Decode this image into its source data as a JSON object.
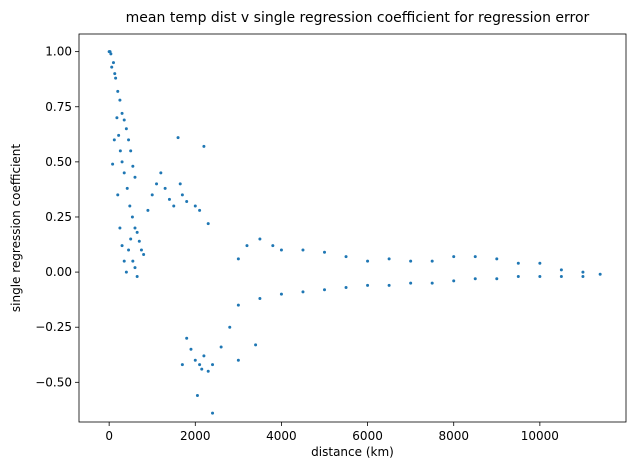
{
  "chart_data": {
    "type": "scatter",
    "title": "mean temp dist v single regression coefficient for regression error",
    "xlabel": "distance (km)",
    "ylabel": "single regression coefficient",
    "xlim": [
      -700,
      12000
    ],
    "ylim": [
      -0.68,
      1.08
    ],
    "xticks": [
      0,
      2000,
      4000,
      6000,
      8000,
      10000
    ],
    "xtick_labels": [
      "0",
      "2000",
      "4000",
      "6000",
      "8000",
      "10000"
    ],
    "yticks": [
      -0.5,
      -0.25,
      0.0,
      0.25,
      0.5,
      0.75,
      1.0
    ],
    "ytick_labels": [
      "−0.50",
      "−0.25",
      "0.00",
      "0.25",
      "0.50",
      "0.75",
      "1.00"
    ],
    "grid": false,
    "marker_color": "#1f77b4",
    "series": [
      {
        "points": [
          [
            0,
            1.0
          ],
          [
            20,
            1.0
          ],
          [
            40,
            0.99
          ],
          [
            60,
            0.93
          ],
          [
            100,
            0.95
          ],
          [
            130,
            0.9
          ],
          [
            150,
            0.88
          ],
          [
            200,
            0.82
          ],
          [
            250,
            0.78
          ],
          [
            300,
            0.72
          ],
          [
            350,
            0.69
          ],
          [
            400,
            0.65
          ],
          [
            450,
            0.6
          ],
          [
            500,
            0.55
          ],
          [
            550,
            0.48
          ],
          [
            600,
            0.43
          ],
          [
            80,
            0.49
          ],
          [
            120,
            0.6
          ],
          [
            180,
            0.7
          ],
          [
            220,
            0.62
          ],
          [
            260,
            0.55
          ],
          [
            300,
            0.5
          ],
          [
            350,
            0.45
          ],
          [
            420,
            0.38
          ],
          [
            480,
            0.3
          ],
          [
            540,
            0.25
          ],
          [
            600,
            0.2
          ],
          [
            650,
            0.18
          ],
          [
            700,
            0.14
          ],
          [
            750,
            0.1
          ],
          [
            800,
            0.08
          ],
          [
            200,
            0.35
          ],
          [
            250,
            0.2
          ],
          [
            300,
            0.12
          ],
          [
            350,
            0.05
          ],
          [
            400,
            0.0
          ],
          [
            450,
            0.1
          ],
          [
            500,
            0.15
          ],
          [
            550,
            0.05
          ],
          [
            600,
            0.02
          ],
          [
            650,
            -0.02
          ],
          [
            900,
            0.28
          ],
          [
            1000,
            0.35
          ],
          [
            1100,
            0.4
          ],
          [
            1200,
            0.45
          ],
          [
            1300,
            0.38
          ],
          [
            1400,
            0.33
          ],
          [
            1500,
            0.3
          ],
          [
            1600,
            0.61
          ],
          [
            1650,
            0.4
          ],
          [
            1700,
            0.35
          ],
          [
            1800,
            0.32
          ],
          [
            2000,
            0.3
          ],
          [
            2200,
            0.57
          ],
          [
            2100,
            0.28
          ],
          [
            2300,
            0.22
          ],
          [
            1800,
            -0.3
          ],
          [
            1900,
            -0.35
          ],
          [
            2000,
            -0.4
          ],
          [
            2100,
            -0.42
          ],
          [
            2150,
            -0.44
          ],
          [
            2200,
            -0.38
          ],
          [
            2300,
            -0.45
          ],
          [
            2400,
            -0.42
          ],
          [
            2600,
            -0.34
          ],
          [
            2800,
            -0.25
          ],
          [
            3000,
            -0.4
          ],
          [
            3400,
            -0.33
          ],
          [
            2050,
            -0.56
          ],
          [
            2400,
            -0.64
          ],
          [
            1700,
            -0.42
          ],
          [
            3000,
            0.06
          ],
          [
            3200,
            0.12
          ],
          [
            3500,
            0.15
          ],
          [
            3800,
            0.12
          ],
          [
            4000,
            0.1
          ],
          [
            4500,
            0.1
          ],
          [
            5000,
            0.09
          ],
          [
            5500,
            0.07
          ],
          [
            6000,
            0.05
          ],
          [
            6500,
            0.06
          ],
          [
            7000,
            0.05
          ],
          [
            7500,
            0.05
          ],
          [
            8000,
            0.07
          ],
          [
            8500,
            0.07
          ],
          [
            9000,
            0.06
          ],
          [
            9500,
            0.04
          ],
          [
            10000,
            0.04
          ],
          [
            10500,
            0.01
          ],
          [
            11000,
            0.0
          ],
          [
            11400,
            -0.01
          ],
          [
            3000,
            -0.15
          ],
          [
            3500,
            -0.12
          ],
          [
            4000,
            -0.1
          ],
          [
            4500,
            -0.09
          ],
          [
            5000,
            -0.08
          ],
          [
            5500,
            -0.07
          ],
          [
            6000,
            -0.06
          ],
          [
            6500,
            -0.06
          ],
          [
            7000,
            -0.05
          ],
          [
            7500,
            -0.05
          ],
          [
            8000,
            -0.04
          ],
          [
            8500,
            -0.03
          ],
          [
            9000,
            -0.03
          ],
          [
            9500,
            -0.02
          ],
          [
            10000,
            -0.02
          ],
          [
            10500,
            -0.02
          ],
          [
            11000,
            -0.02
          ]
        ]
      }
    ]
  }
}
